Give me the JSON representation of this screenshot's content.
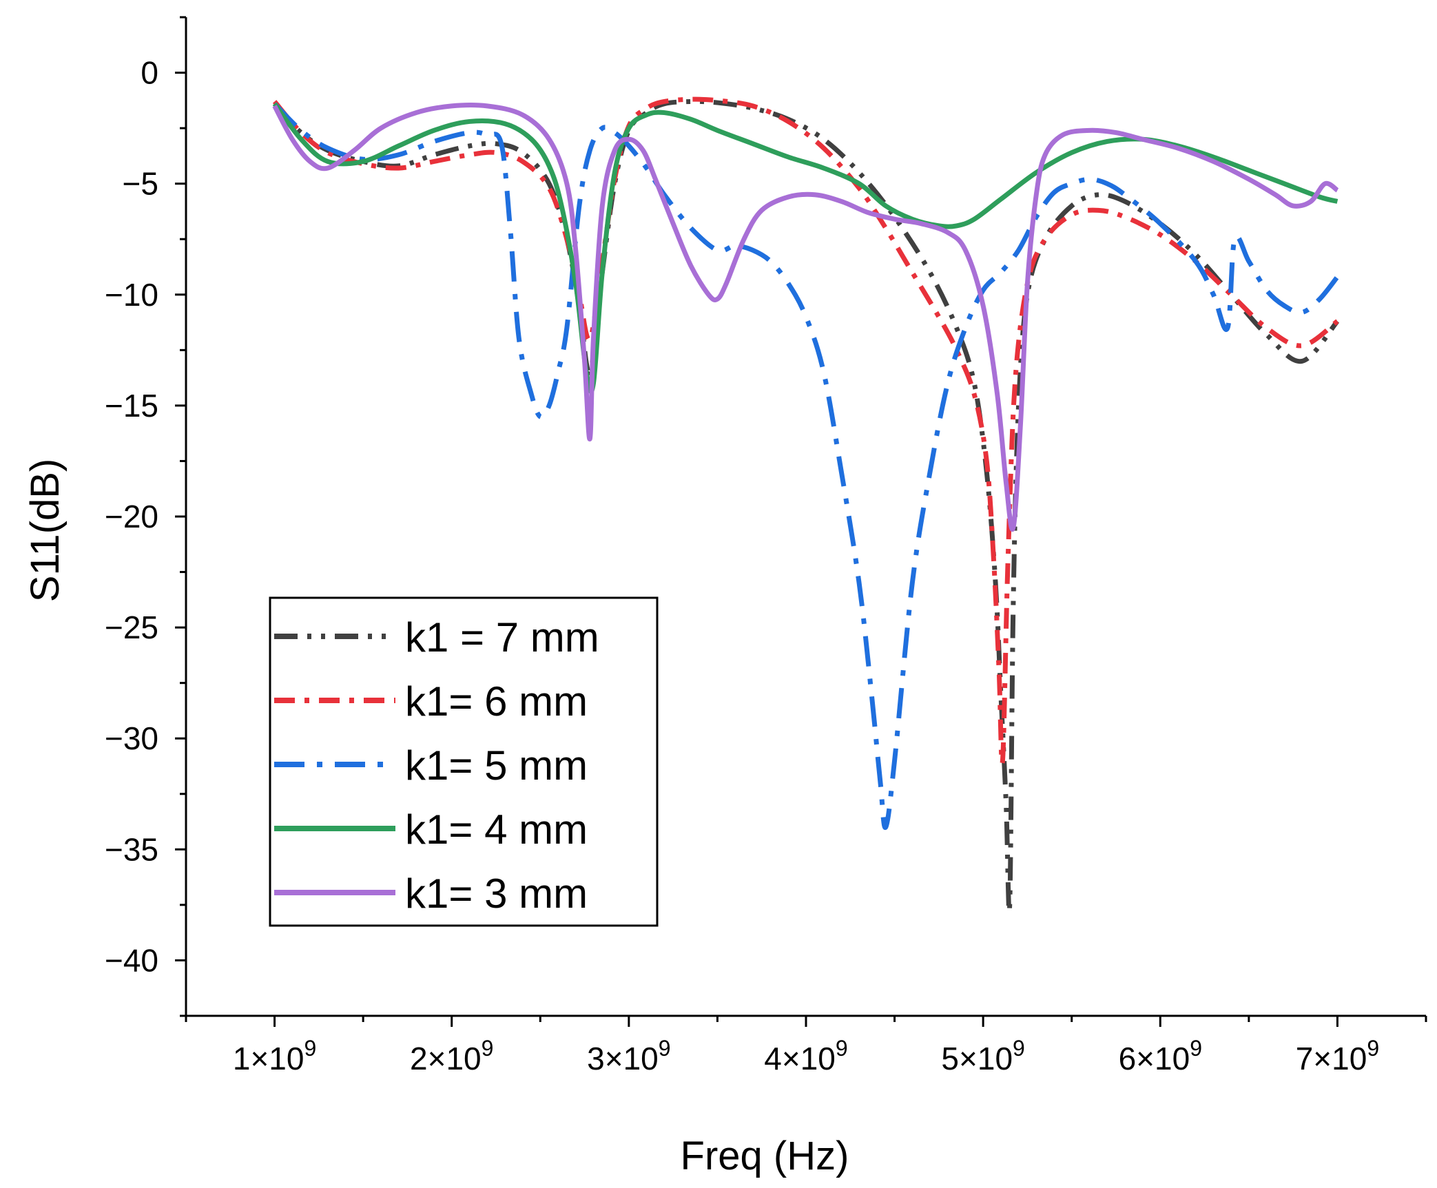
{
  "chart_data": {
    "type": "line",
    "title": "",
    "xlabel": "Freq (Hz)",
    "ylabel": "S11(dB)",
    "xlim": [
      500000000.0,
      7500000000.0
    ],
    "ylim": [
      -42.5,
      2.5
    ],
    "xticks": [
      1000000000.0,
      2000000000.0,
      3000000000.0,
      4000000000.0,
      5000000000.0,
      6000000000.0,
      7000000000.0
    ],
    "xtick_labels": [
      {
        "base": "1×10",
        "exp": "9"
      },
      {
        "base": "2×10",
        "exp": "9"
      },
      {
        "base": "3×10",
        "exp": "9"
      },
      {
        "base": "4×10",
        "exp": "9"
      },
      {
        "base": "5×10",
        "exp": "9"
      },
      {
        "base": "6×10",
        "exp": "9"
      },
      {
        "base": "7×10",
        "exp": "9"
      }
    ],
    "yticks": [
      0,
      -5,
      -10,
      -15,
      -20,
      -25,
      -30,
      -35,
      -40
    ],
    "ytick_labels": [
      "0",
      "−5",
      "−10",
      "−15",
      "−20",
      "−25",
      "−30",
      "−35",
      "−40"
    ],
    "grid": false,
    "legend_position": "bottom-left",
    "x_unit_scale": 1000000000.0,
    "series": [
      {
        "name": "k1 = 7 mm",
        "color": "#404040",
        "dash": "dash-dot-dot",
        "x_ghz": [
          1.0,
          1.15,
          1.3,
          1.5,
          1.7,
          1.9,
          2.1,
          2.25,
          2.4,
          2.55,
          2.65,
          2.72,
          2.78,
          2.85,
          2.92,
          3.0,
          3.1,
          3.2,
          3.35,
          3.5,
          3.7,
          3.9,
          4.1,
          4.3,
          4.5,
          4.7,
          4.85,
          4.95,
          5.02,
          5.07,
          5.1,
          5.13,
          5.15,
          5.17,
          5.2,
          5.25,
          5.35,
          5.5,
          5.65,
          5.8,
          6.0,
          6.2,
          6.4,
          6.6,
          6.8,
          7.0
        ],
        "y": [
          -1.5,
          -2.7,
          -3.5,
          -4.0,
          -4.2,
          -3.7,
          -3.3,
          -3.2,
          -3.6,
          -5.0,
          -7.5,
          -10.5,
          -13.5,
          -9.0,
          -5.0,
          -2.6,
          -1.8,
          -1.4,
          -1.3,
          -1.35,
          -1.6,
          -2.1,
          -3.0,
          -4.5,
          -6.5,
          -9.0,
          -11.5,
          -14.0,
          -18.0,
          -23.0,
          -28.0,
          -33.0,
          -37.5,
          -24.0,
          -15.0,
          -10.0,
          -7.5,
          -6.0,
          -5.5,
          -5.8,
          -6.8,
          -8.2,
          -10.0,
          -11.8,
          -13.0,
          -11.2
        ]
      },
      {
        "name": "k1= 6 mm",
        "color": "#e8313a",
        "dash": "dash-dot",
        "x_ghz": [
          1.0,
          1.15,
          1.3,
          1.5,
          1.7,
          1.9,
          2.1,
          2.25,
          2.4,
          2.55,
          2.65,
          2.72,
          2.78,
          2.85,
          2.92,
          3.0,
          3.1,
          3.2,
          3.35,
          3.5,
          3.7,
          3.9,
          4.1,
          4.3,
          4.45,
          4.6,
          4.75,
          4.85,
          4.95,
          5.02,
          5.06,
          5.09,
          5.11,
          5.14,
          5.18,
          5.25,
          5.35,
          5.5,
          5.65,
          5.8,
          6.0,
          6.2,
          6.4,
          6.6,
          6.8,
          7.0
        ],
        "y": [
          -1.3,
          -2.7,
          -3.6,
          -4.1,
          -4.3,
          -4.0,
          -3.7,
          -3.6,
          -4.0,
          -5.2,
          -7.5,
          -10.0,
          -12.0,
          -8.5,
          -4.8,
          -2.4,
          -1.6,
          -1.3,
          -1.2,
          -1.25,
          -1.5,
          -2.2,
          -3.4,
          -5.2,
          -7.0,
          -9.0,
          -11.0,
          -12.5,
          -14.5,
          -17.5,
          -22.0,
          -27.0,
          -31.0,
          -22.0,
          -14.0,
          -9.5,
          -7.5,
          -6.4,
          -6.2,
          -6.5,
          -7.3,
          -8.5,
          -10.0,
          -11.5,
          -12.3,
          -11.2
        ]
      },
      {
        "name": "k1= 5 mm",
        "color": "#1f6fde",
        "dash": "dash-dot-long",
        "x_ghz": [
          1.0,
          1.15,
          1.3,
          1.5,
          1.7,
          1.9,
          2.1,
          2.2,
          2.28,
          2.33,
          2.38,
          2.45,
          2.5,
          2.55,
          2.6,
          2.65,
          2.72,
          2.78,
          2.85,
          2.92,
          3.0,
          3.1,
          3.2,
          3.35,
          3.5,
          3.6,
          3.7,
          3.8,
          3.9,
          4.0,
          4.1,
          4.2,
          4.3,
          4.37,
          4.42,
          4.45,
          4.5,
          4.6,
          4.7,
          4.8,
          4.9,
          5.0,
          5.1,
          5.2,
          5.3,
          5.4,
          5.5,
          5.6,
          5.7,
          5.8,
          6.0,
          6.2,
          6.3,
          6.38,
          6.42,
          6.5,
          6.6,
          6.7,
          6.8,
          6.9,
          7.0
        ],
        "y": [
          -1.4,
          -2.6,
          -3.4,
          -3.9,
          -3.7,
          -3.1,
          -2.7,
          -2.8,
          -3.2,
          -7.0,
          -12.0,
          -14.5,
          -15.5,
          -15.0,
          -13.5,
          -11.5,
          -6.0,
          -3.5,
          -2.5,
          -2.7,
          -3.3,
          -4.3,
          -5.5,
          -7.0,
          -8.0,
          -7.8,
          -8.0,
          -8.5,
          -9.5,
          -11.0,
          -13.5,
          -18.0,
          -23.0,
          -28.0,
          -32.0,
          -34.0,
          -31.0,
          -23.0,
          -18.0,
          -14.0,
          -11.5,
          -9.8,
          -9.0,
          -8.0,
          -6.5,
          -5.4,
          -5.0,
          -4.8,
          -5.0,
          -5.5,
          -6.8,
          -8.5,
          -10.0,
          -11.5,
          -7.5,
          -8.5,
          -9.8,
          -10.5,
          -10.8,
          -10.2,
          -9.2
        ]
      },
      {
        "name": "k1= 4 mm",
        "color": "#2e9e5b",
        "dash": "solid",
        "x_ghz": [
          1.0,
          1.15,
          1.3,
          1.5,
          1.7,
          1.9,
          2.1,
          2.3,
          2.45,
          2.55,
          2.62,
          2.7,
          2.76,
          2.8,
          2.85,
          2.92,
          3.0,
          3.1,
          3.2,
          3.35,
          3.5,
          3.7,
          3.9,
          4.1,
          4.3,
          4.45,
          4.6,
          4.75,
          4.85,
          4.95,
          5.1,
          5.3,
          5.5,
          5.7,
          5.9,
          6.1,
          6.3,
          6.5,
          6.7,
          6.9,
          7.0
        ],
        "y": [
          -1.4,
          -3.0,
          -4.0,
          -4.0,
          -3.3,
          -2.6,
          -2.2,
          -2.3,
          -3.0,
          -4.2,
          -6.0,
          -9.5,
          -13.5,
          -14.0,
          -9.0,
          -4.5,
          -2.5,
          -1.9,
          -1.8,
          -2.1,
          -2.6,
          -3.2,
          -3.8,
          -4.3,
          -5.0,
          -6.0,
          -6.6,
          -6.9,
          -6.9,
          -6.6,
          -5.7,
          -4.5,
          -3.6,
          -3.1,
          -3.0,
          -3.3,
          -3.8,
          -4.4,
          -5.0,
          -5.6,
          -5.8
        ]
      },
      {
        "name": "k1= 3 mm",
        "color": "#a86fd6",
        "dash": "solid",
        "x_ghz": [
          1.0,
          1.1,
          1.2,
          1.3,
          1.45,
          1.6,
          1.8,
          2.0,
          2.2,
          2.4,
          2.55,
          2.65,
          2.7,
          2.75,
          2.78,
          2.8,
          2.85,
          2.92,
          3.0,
          3.08,
          3.15,
          3.25,
          3.35,
          3.45,
          3.5,
          3.55,
          3.65,
          3.75,
          3.9,
          4.05,
          4.2,
          4.35,
          4.5,
          4.65,
          4.8,
          4.9,
          5.0,
          5.08,
          5.13,
          5.17,
          5.21,
          5.25,
          5.3,
          5.35,
          5.45,
          5.6,
          5.75,
          5.9,
          6.1,
          6.3,
          6.5,
          6.65,
          6.75,
          6.85,
          6.93,
          7.0
        ],
        "y": [
          -1.5,
          -3.0,
          -4.0,
          -4.3,
          -3.5,
          -2.5,
          -1.8,
          -1.5,
          -1.5,
          -1.9,
          -3.0,
          -5.0,
          -8.0,
          -13.0,
          -16.5,
          -12.0,
          -6.0,
          -3.5,
          -3.0,
          -3.5,
          -4.8,
          -6.8,
          -8.7,
          -10.0,
          -10.2,
          -9.5,
          -7.5,
          -6.2,
          -5.6,
          -5.5,
          -5.8,
          -6.3,
          -6.6,
          -6.8,
          -7.2,
          -8.0,
          -10.5,
          -14.5,
          -18.5,
          -20.5,
          -16.0,
          -9.5,
          -5.5,
          -3.7,
          -2.8,
          -2.6,
          -2.7,
          -3.0,
          -3.4,
          -4.0,
          -4.8,
          -5.5,
          -6.0,
          -5.8,
          -5.0,
          -5.3
        ]
      }
    ]
  }
}
